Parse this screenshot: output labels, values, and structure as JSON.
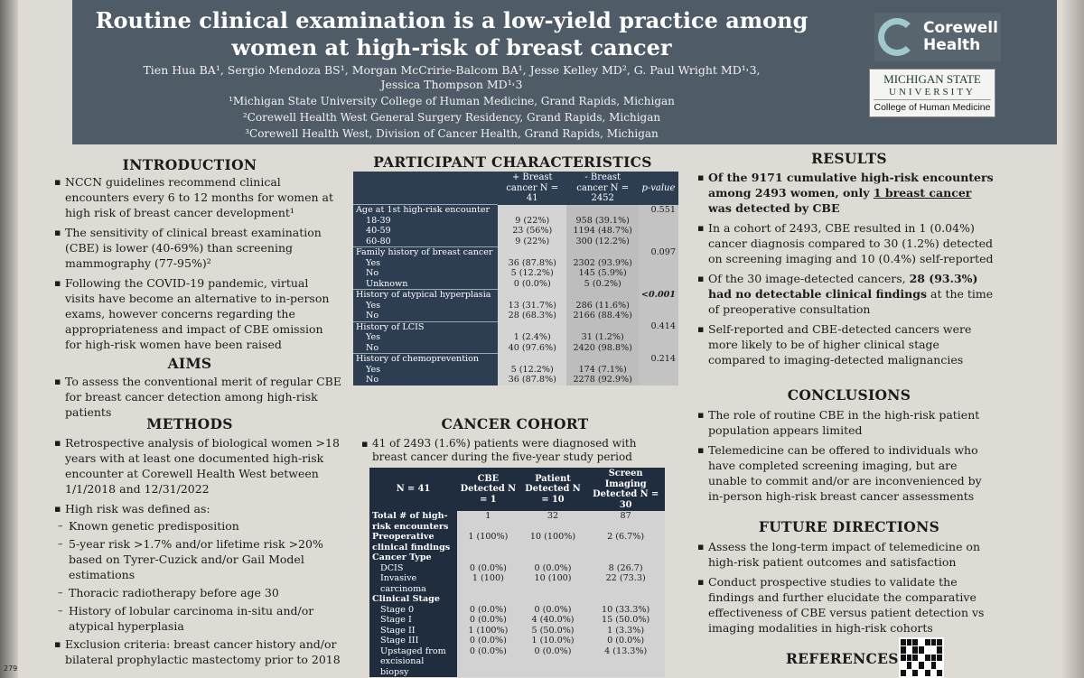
{
  "header": {
    "title": "Routine clinical examination is a low-yield practice among women at high-risk of breast cancer",
    "authors_line1": "Tien Hua BA¹, Sergio Mendoza BS¹, Morgan McCririe-Balcom BA¹,  Jesse Kelley MD², G. Paul Wright MD¹˒3,",
    "authors_line2": "Jessica Thompson MD¹˒3",
    "affiliations": [
      "¹Michigan State University College of Human Medicine, Grand Rapids, Michigan",
      "²Corewell Health West General Surgery Residency, Grand Rapids, Michigan",
      "³Corewell Health West, Division of Cancer Health, Grand Rapids, Michigan"
    ],
    "logo_corewell": [
      "Corewell",
      "Health"
    ],
    "logo_msu": [
      "MICHIGAN STATE",
      "UNIVERSITY",
      "College of Human Medicine"
    ]
  },
  "introduction": {
    "heading": "INTRODUCTION",
    "bullets": [
      "NCCN guidelines recommend clinical encounters every 6 to 12 months for women at high risk of breast cancer development¹",
      "The sensitivity of clinical breast examination (CBE) is lower (40-69%) than screening mammography (77-95%)²",
      "Following the COVID-19 pandemic, virtual visits have become an alternative to in-person exams, however concerns regarding the appropriateness and impact of CBE omission for high-risk women have been raised"
    ]
  },
  "aims": {
    "heading": "AIMS",
    "bullets": [
      "To assess the conventional merit of regular CBE for breast cancer detection among high-risk patients"
    ]
  },
  "methods": {
    "heading": "METHODS",
    "bullet1": "Retrospective analysis of biological women >18 years with at least one documented high-risk encounter at Corewell Health West between 1/1/2018 and 12/31/2022",
    "bullet2": "High risk was defined as:",
    "subs": [
      "Known genetic predisposition",
      "5-year risk >1.7% and/or lifetime risk >20% based on Tyrer-Cuzick and/or Gail Model estimations",
      "Thoracic radiotherapy before age 30",
      "History of lobular carcinoma in-situ and/or atypical hyperplasia"
    ],
    "bullet3": "Exclusion criteria: breast cancer history and/or bilateral prophylactic mastectomy prior to 2018"
  },
  "participant": {
    "heading": "PARTICIPANT CHARACTERISTICS",
    "col1": "+ Breast cancer N = 41",
    "col2": "- Breast cancer N = 2452",
    "col3": "p-value",
    "rows": [
      {
        "label": "Age at 1st high-risk encounter",
        "a": "",
        "b": "",
        "p": "0.551",
        "cat": true
      },
      {
        "label": "18-39",
        "a": "9 (22%)",
        "b": "958 (39.1%)",
        "p": ""
      },
      {
        "label": "40-59",
        "a": "23 (56%)",
        "b": "1194 (48.7%)",
        "p": ""
      },
      {
        "label": "60-80",
        "a": "9 (22%)",
        "b": "300 (12.2%)",
        "p": ""
      },
      {
        "label": "Family history of breast cancer",
        "a": "",
        "b": "",
        "p": "0.097",
        "cat": true
      },
      {
        "label": "Yes",
        "a": "36 (87.8%)",
        "b": "2302 (93.9%)",
        "p": ""
      },
      {
        "label": "No",
        "a": "5 (12.2%)",
        "b": "145 (5.9%)",
        "p": ""
      },
      {
        "label": "Unknown",
        "a": "0 (0.0%)",
        "b": "5 (0.2%)",
        "p": ""
      },
      {
        "label": "History of atypical hyperplasia",
        "a": "",
        "b": "",
        "p": "<0.001",
        "cat": true,
        "bold": true
      },
      {
        "label": "Yes",
        "a": "13 (31.7%)",
        "b": "286 (11.6%)",
        "p": ""
      },
      {
        "label": "No",
        "a": "28 (68.3%)",
        "b": "2166 (88.4%)",
        "p": ""
      },
      {
        "label": "History of LCIS",
        "a": "",
        "b": "",
        "p": "0.414",
        "cat": true
      },
      {
        "label": "Yes",
        "a": "1 (2.4%)",
        "b": "31 (1.2%)",
        "p": ""
      },
      {
        "label": "No",
        "a": "40 (97.6%)",
        "b": "2420 (98.8%)",
        "p": ""
      },
      {
        "label": "History of chemoprevention",
        "a": "",
        "b": "",
        "p": "0.214",
        "cat": true
      },
      {
        "label": "Yes",
        "a": "5 (12.2%)",
        "b": "174 (7.1%)",
        "p": ""
      },
      {
        "label": "No",
        "a": "36 (87.8%)",
        "b": "2278 (92.9%)",
        "p": ""
      }
    ]
  },
  "cohort": {
    "heading": "CANCER COHORT",
    "intro": "41 of 2493 (1.6%) patients were diagnosed with breast cancer during the five-year study period",
    "cols": [
      "N = 41",
      "CBE Detected N = 1",
      "Patient Detected N = 10",
      "Screen Imaging Detected N = 30"
    ],
    "rows": [
      {
        "label": "Total # of high-risk encounters",
        "v": [
          "1",
          "32",
          "87"
        ],
        "cat": true
      },
      {
        "label": "Preoperative clinical findings",
        "v": [
          "1 (100%)",
          "10 (100%)",
          "2 (6.7%)"
        ],
        "cat": true
      },
      {
        "label": "Cancer Type",
        "v": [
          "",
          "",
          ""
        ],
        "cat": true
      },
      {
        "label": "DCIS",
        "v": [
          "0 (0.0%)",
          "0 (0.0%)",
          "8 (26.7)"
        ]
      },
      {
        "label": "Invasive carcinoma",
        "v": [
          "1 (100)",
          "10 (100)",
          "22 (73.3)"
        ]
      },
      {
        "label": "Clinical Stage",
        "v": [
          "",
          "",
          ""
        ],
        "cat": true
      },
      {
        "label": "Stage 0",
        "v": [
          "0 (0.0%)",
          "0 (0.0%)",
          "10 (33.3%)"
        ]
      },
      {
        "label": "Stage I",
        "v": [
          "0 (0.0%)",
          "4 (40.0%)",
          "15 (50.0%)"
        ]
      },
      {
        "label": "Stage II",
        "v": [
          "1 (100%)",
          "5 (50.0%)",
          "1 (3.3%)"
        ]
      },
      {
        "label": "Stage III",
        "v": [
          "0 (0.0%)",
          "1 (10.0%)",
          "0 (0.0%)"
        ]
      },
      {
        "label": "Upstaged from excisional biopsy",
        "v": [
          "0 (0.0%)",
          "0 (0.0%)",
          "4 (13.3%)"
        ]
      }
    ]
  },
  "results": {
    "heading": "RESULTS",
    "b1_pre": "Of the 9171 cumulative high-risk encounters among 2493 women, only ",
    "b1_u": "1 breast cancer",
    "b1_post": " was detected by CBE",
    "b2": "In a cohort of 2493, CBE resulted in 1 (0.04%) cancer diagnosis compared to 30 (1.2%) detected on screening imaging and 10 (0.4%) self-reported",
    "b3_pre": "Of the 30 image-detected cancers, ",
    "b3_bold": "28 (93.3%) had no detectable clinical findings",
    "b3_post": " at the time of preoperative consultation",
    "b4": "Self-reported and CBE-detected cancers were more likely to be of higher clinical stage compared to imaging-detected malignancies"
  },
  "conclusions": {
    "heading": "CONCLUSIONS",
    "bullets": [
      "The role of routine CBE in the high-risk patient population appears limited",
      "Telemedicine can be offered to individuals who have completed screening imaging, but are unable to commit and/or are inconvenienced by in-person high-risk breast cancer assessments"
    ]
  },
  "future": {
    "heading": "FUTURE DIRECTIONS",
    "bullets": [
      "Assess the long-term impact of telemedicine on high-risk patient outcomes and satisfaction",
      "Conduct prospective studies to validate the findings and further elucidate the comparative effectiveness of CBE versus patient detection vs imaging modalities in high-risk cohorts"
    ]
  },
  "references": {
    "heading": "REFERENCES"
  },
  "corner_tag": "279"
}
